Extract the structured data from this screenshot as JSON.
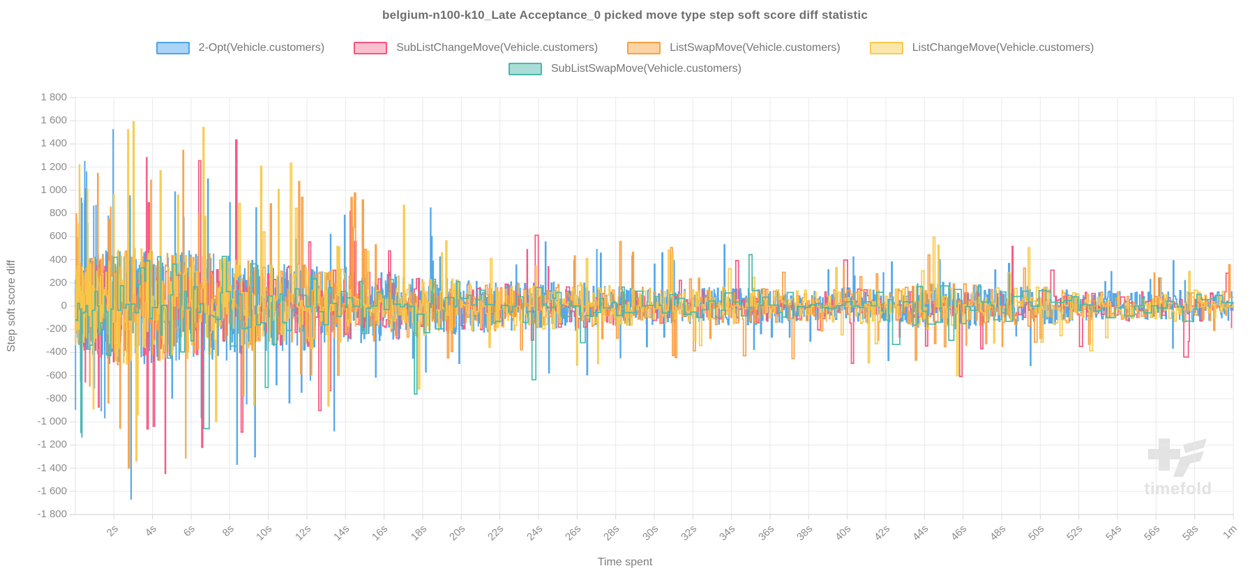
{
  "watermark": {
    "text": "timefold"
  },
  "chart_data": {
    "type": "line",
    "line_style": "step-after-noise",
    "title": "belgium-n100-k10_Late Acceptance_0 picked move type step soft score diff statistic",
    "xlabel": "Time spent",
    "ylabel": "Step soft score diff",
    "ylim": [
      -1800,
      1800
    ],
    "y_tick_step": 200,
    "y_tick_labels": [
      "1 800",
      "1 600",
      "1 400",
      "1 200",
      "1 000",
      "800",
      "600",
      "400",
      "200",
      "0",
      "-200",
      "-400",
      "-600",
      "-800",
      "-1 000",
      "-1 200",
      "-1 400",
      "-1 600",
      "-1 800"
    ],
    "x_range_seconds": [
      0,
      60
    ],
    "x_tick_seconds": [
      2,
      4,
      6,
      8,
      10,
      12,
      14,
      16,
      18,
      20,
      22,
      24,
      26,
      28,
      30,
      32,
      34,
      36,
      38,
      40,
      42,
      44,
      46,
      48,
      50,
      52,
      54,
      56,
      58,
      60
    ],
    "x_tick_labels": [
      "2s",
      "4s",
      "6s",
      "8s",
      "10s",
      "12s",
      "14s",
      "16s",
      "18s",
      "20s",
      "22s",
      "24s",
      "26s",
      "28s",
      "30s",
      "32s",
      "34s",
      "36s",
      "38s",
      "40s",
      "42s",
      "44s",
      "46s",
      "48s",
      "50s",
      "52s",
      "54s",
      "56s",
      "58s",
      "1m"
    ],
    "grid": true,
    "legend_position": "top",
    "envelope": {
      "time_s": [
        0,
        2,
        4,
        6,
        8,
        10,
        12,
        14,
        16,
        18,
        20,
        22,
        24,
        26,
        28,
        30,
        32,
        34,
        36,
        38,
        40,
        42,
        44,
        46,
        48,
        50,
        52,
        54,
        56,
        58,
        60
      ],
      "max_abs_score_diff": [
        1250,
        1800,
        1700,
        1650,
        1600,
        1350,
        1300,
        1150,
        1050,
        900,
        820,
        760,
        700,
        720,
        620,
        560,
        520,
        600,
        520,
        470,
        560,
        480,
        700,
        720,
        540,
        640,
        440,
        470,
        450,
        500,
        430
      ],
      "core_band_fraction": 0.3
    },
    "series": [
      {
        "name": "2-Opt(Vehicle.customers)",
        "color": "#4BA3E8",
        "legend_fill": "#A9D4F5",
        "points": 2400,
        "spike_prob": 0.035,
        "density_exp": 1.6,
        "env_scale": 0.97,
        "seed": 101
      },
      {
        "name": "SubListChangeMove(Vehicle.customers)",
        "color": "#F4537E",
        "legend_fill": "#FAC0CE",
        "points": 650,
        "spike_prob": 0.05,
        "density_exp": 1.4,
        "env_scale": 0.92,
        "seed": 202
      },
      {
        "name": "ListSwapMove(Vehicle.customers)",
        "color": "#FA9E41",
        "legend_fill": "#FCD4A4",
        "points": 950,
        "spike_prob": 0.065,
        "density_exp": 1.45,
        "env_scale": 0.95,
        "seed": 303
      },
      {
        "name": "ListChangeMove(Vehicle.customers)",
        "color": "#F8C94B",
        "legend_fill": "#FBE7AC",
        "points": 950,
        "spike_prob": 0.065,
        "density_exp": 1.45,
        "env_scale": 0.95,
        "seed": 404
      },
      {
        "name": "SubListSwapMove(Vehicle.customers)",
        "color": "#45B8AC",
        "legend_fill": "#AADDD6",
        "points": 240,
        "spike_prob": 0.05,
        "density_exp": 1.35,
        "env_scale": 0.9,
        "seed": 505
      }
    ]
  }
}
